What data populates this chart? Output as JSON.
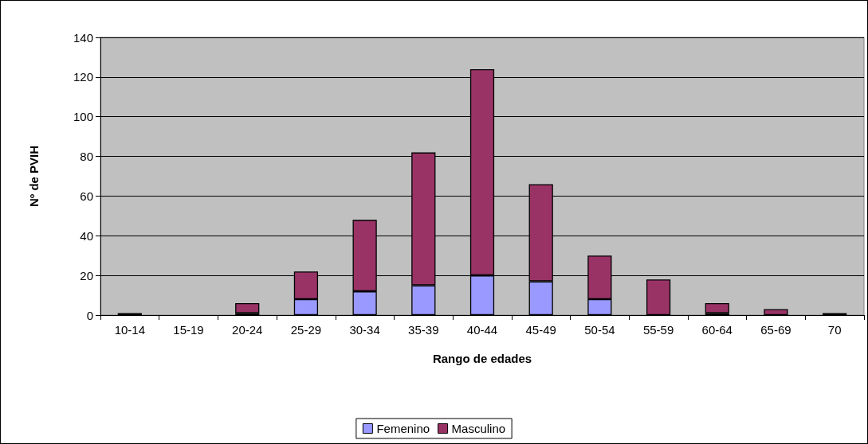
{
  "chart_data": {
    "type": "bar",
    "stacked": true,
    "xlabel": "Rango de edades",
    "ylabel": "Nº de PVIH",
    "categories": [
      "10-14",
      "15-19",
      "20-24",
      "25-29",
      "30-34",
      "35-39",
      "40-44",
      "45-49",
      "50-54",
      "55-59",
      "60-64",
      "65-69",
      "70"
    ],
    "series": [
      {
        "name": "Femenino",
        "color": "#9999ff",
        "values": [
          0,
          0,
          1,
          8,
          12,
          15,
          20,
          17,
          8,
          0,
          1,
          0,
          0
        ]
      },
      {
        "name": "Masculino",
        "color": "#993366",
        "values": [
          1,
          0,
          5,
          14,
          36,
          67,
          104,
          49,
          22,
          18,
          5,
          3,
          1
        ]
      }
    ],
    "ylim": [
      0,
      140
    ],
    "yticks": [
      0,
      20,
      40,
      60,
      80,
      100,
      120,
      140
    ],
    "grid": "y",
    "legend": "bottom"
  }
}
